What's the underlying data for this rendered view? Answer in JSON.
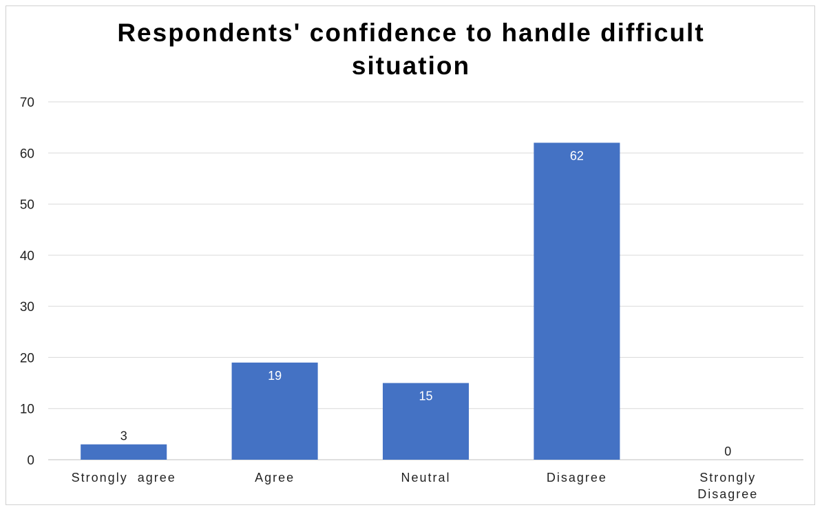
{
  "chart_data": {
    "type": "bar",
    "title_lines": [
      "Respondents' confidence to handle difficult",
      "situation"
    ],
    "categories": [
      [
        "Strongly  agree"
      ],
      [
        "Agree"
      ],
      [
        "Neutral"
      ],
      [
        "Disagree"
      ],
      [
        "Strongly",
        "Disagree"
      ]
    ],
    "values": [
      3,
      19,
      15,
      62,
      0
    ],
    "ylim": [
      0,
      70
    ],
    "yticks": [
      0,
      10,
      20,
      30,
      40,
      50,
      60,
      70
    ],
    "grid": true,
    "legend": "none",
    "colors": {
      "bar": "#4472c4",
      "grid": "#d9d9d9",
      "axis": "#bfbfbf",
      "label_inside": "#ffffff",
      "label_outside": "#222222"
    }
  }
}
